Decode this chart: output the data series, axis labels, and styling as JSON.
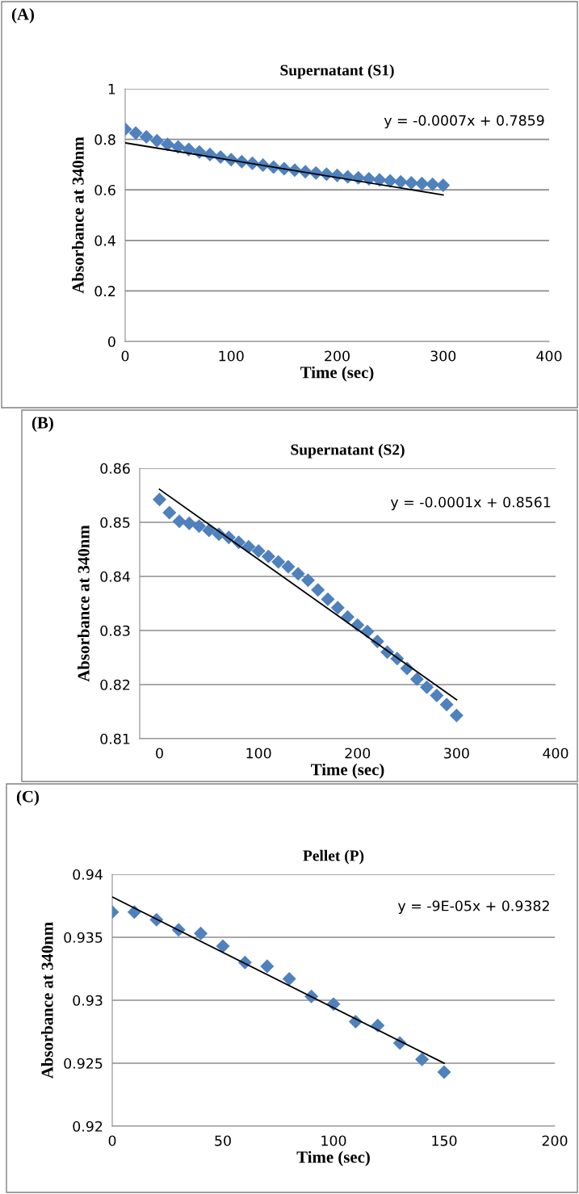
{
  "chart_data": [
    {
      "type": "scatter",
      "title": "Supernatant (S1)",
      "xlabel": "Time (sec)",
      "ylabel": "Absorbance at 340nm",
      "annotations": [
        "(A)",
        "y = -0.0007x + 0.7859"
      ],
      "x": [
        0,
        10,
        20,
        30,
        40,
        50,
        60,
        70,
        80,
        90,
        100,
        110,
        120,
        130,
        140,
        150,
        160,
        170,
        180,
        190,
        200,
        210,
        220,
        230,
        240,
        250,
        260,
        270,
        280,
        290,
        300
      ],
      "series": [
        {
          "color": "#4f81bd",
          "marker": "diamond",
          "values": [
            0.84,
            0.825,
            0.81,
            0.795,
            0.78,
            0.77,
            0.76,
            0.75,
            0.74,
            0.73,
            0.72,
            0.712,
            0.705,
            0.698,
            0.69,
            0.684,
            0.678,
            0.672,
            0.667,
            0.662,
            0.657,
            0.652,
            0.648,
            0.644,
            0.64,
            0.636,
            0.632,
            0.628,
            0.625,
            0.622,
            0.618
          ]
        },
        {
          "type": "line",
          "color": "#000000",
          "marker": "none",
          "x": [
            0,
            300
          ],
          "values": [
            0.786,
            0.58
          ]
        }
      ],
      "xlim": [
        0,
        400
      ],
      "xticks": [
        0,
        100,
        200,
        300,
        400
      ],
      "ylim": [
        0,
        1
      ],
      "yticks": [
        0,
        0.2,
        0.4,
        0.6,
        0.8,
        1
      ],
      "grid": "y"
    },
    {
      "type": "scatter",
      "title": "Supernatant (S2)",
      "xlabel": "Time (sec)",
      "ylabel": "Absorbance at 340nm",
      "annotations": [
        "(B)",
        "y = -0.0001x + 0.8561"
      ],
      "x": [
        0,
        10,
        20,
        30,
        40,
        50,
        60,
        70,
        80,
        90,
        100,
        110,
        120,
        130,
        140,
        150,
        160,
        170,
        180,
        190,
        200,
        210,
        220,
        230,
        240,
        250,
        260,
        270,
        280,
        290,
        300
      ],
      "series": [
        {
          "color": "#4f81bd",
          "marker": "diamond",
          "values": [
            0.8542,
            0.8518,
            0.8502,
            0.8498,
            0.8493,
            0.8485,
            0.8478,
            0.8472,
            0.8463,
            0.8455,
            0.8447,
            0.8437,
            0.8427,
            0.8418,
            0.8405,
            0.8393,
            0.8375,
            0.8358,
            0.8342,
            0.8325,
            0.831,
            0.8298,
            0.828,
            0.826,
            0.8248,
            0.823,
            0.821,
            0.8195,
            0.818,
            0.8163,
            0.8143
          ]
        },
        {
          "type": "line",
          "color": "#000000",
          "marker": "none",
          "x": [
            0,
            300
          ],
          "values": [
            0.8561,
            0.8172
          ]
        }
      ],
      "xlim": [
        -20,
        400
      ],
      "xticks": [
        0,
        100,
        200,
        300,
        400
      ],
      "ylim": [
        0.81,
        0.86
      ],
      "yticks": [
        0.81,
        0.82,
        0.83,
        0.84,
        0.85,
        0.86
      ],
      "grid": "y"
    },
    {
      "type": "scatter",
      "title": "Pellet (P)",
      "xlabel": "Time (sec)",
      "ylabel": "Absorbance at 340nm",
      "annotations": [
        "(C)",
        "y = -9E-05x + 0.9382"
      ],
      "x": [
        0,
        10,
        20,
        30,
        40,
        50,
        60,
        70,
        80,
        90,
        100,
        110,
        120,
        130,
        140,
        150
      ],
      "series": [
        {
          "color": "#4f81bd",
          "marker": "diamond",
          "values": [
            0.937,
            0.937,
            0.9364,
            0.9356,
            0.9353,
            0.9343,
            0.933,
            0.9327,
            0.9317,
            0.9303,
            0.9297,
            0.9283,
            0.928,
            0.9266,
            0.9253,
            0.9243
          ]
        },
        {
          "type": "line",
          "color": "#000000",
          "marker": "none",
          "x": [
            0,
            150
          ],
          "values": [
            0.9382,
            0.925
          ]
        }
      ],
      "xlim": [
        0,
        200
      ],
      "xticks": [
        0,
        50,
        100,
        150,
        200
      ],
      "ylim": [
        0.92,
        0.94
      ],
      "yticks": [
        0.92,
        0.925,
        0.93,
        0.935,
        0.94
      ],
      "grid": "y"
    }
  ]
}
